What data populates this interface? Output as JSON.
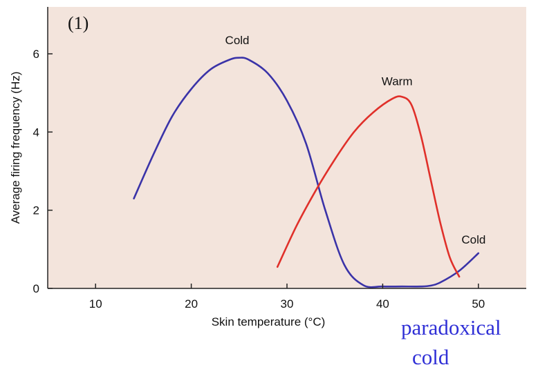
{
  "panel_label": "(1)",
  "annotation": {
    "line1": "paradoxical",
    "line2": "cold",
    "color": "#2f2fd6"
  },
  "chart_data": {
    "type": "line",
    "title": "",
    "xlabel": "Skin temperature (°C)",
    "ylabel": "Average firing frequency (Hz)",
    "xlim": [
      5,
      55
    ],
    "ylim": [
      0,
      7.2
    ],
    "xticks": [
      10,
      20,
      30,
      40,
      50
    ],
    "yticks": [
      0,
      2,
      4,
      6
    ],
    "grid": false,
    "background_color": "#f3e4dc",
    "series": [
      {
        "name": "Cold",
        "color": "#3a33a8",
        "x": [
          14,
          16,
          18,
          20,
          22,
          24,
          25,
          26,
          28,
          30,
          32,
          34,
          36,
          38,
          40,
          42,
          44,
          45,
          46,
          48,
          50
        ],
        "y": [
          2.3,
          3.4,
          4.4,
          5.1,
          5.6,
          5.85,
          5.9,
          5.85,
          5.5,
          4.8,
          3.7,
          2.0,
          0.6,
          0.08,
          0.05,
          0.05,
          0.05,
          0.07,
          0.15,
          0.45,
          0.9
        ]
      },
      {
        "name": "Warm",
        "color": "#e0302a",
        "x": [
          29,
          31,
          33,
          35,
          37,
          39,
          41,
          42,
          43,
          44,
          45,
          46,
          47,
          48
        ],
        "y": [
          0.55,
          1.6,
          2.5,
          3.3,
          4.0,
          4.5,
          4.85,
          4.9,
          4.7,
          3.9,
          2.8,
          1.7,
          0.8,
          0.3
        ]
      }
    ],
    "labels": [
      {
        "text": "Cold",
        "x": 24.8,
        "y": 6.25
      },
      {
        "text": "Warm",
        "x": 41.5,
        "y": 5.2
      },
      {
        "text": "Cold",
        "x": 49.5,
        "y": 1.15
      }
    ]
  }
}
